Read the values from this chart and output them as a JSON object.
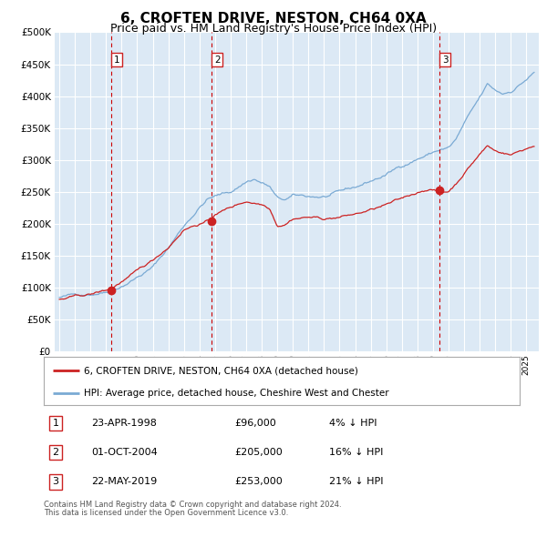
{
  "title": "6, CROFTEN DRIVE, NESTON, CH64 0XA",
  "subtitle": "Price paid vs. HM Land Registry's House Price Index (HPI)",
  "title_fontsize": 11,
  "subtitle_fontsize": 9,
  "ytick_values": [
    0,
    50000,
    100000,
    150000,
    200000,
    250000,
    300000,
    350000,
    400000,
    450000,
    500000
  ],
  "ylim": [
    0,
    500000
  ],
  "xlim_start": 1994.7,
  "xlim_end": 2025.8,
  "background_color": "#ffffff",
  "plot_bg_color": "#dce9f5",
  "grid_color": "#ffffff",
  "hpi_line_color": "#7aaad4",
  "sale_line_color": "#cc2222",
  "sale_point_color": "#cc2222",
  "vline_color": "#cc0000",
  "legend_label_sale": "6, CROFTEN DRIVE, NESTON, CH64 0XA (detached house)",
  "legend_label_hpi": "HPI: Average price, detached house, Cheshire West and Chester",
  "transactions": [
    {
      "num": 1,
      "date_year": 1998.31,
      "price": 96000
    },
    {
      "num": 2,
      "date_year": 2004.75,
      "price": 205000
    },
    {
      "num": 3,
      "date_year": 2019.39,
      "price": 253000
    }
  ],
  "footer_line1": "Contains HM Land Registry data © Crown copyright and database right 2024.",
  "footer_line2": "This data is licensed under the Open Government Licence v3.0.",
  "table_rows": [
    {
      "num": 1,
      "date": "23-APR-1998",
      "price": "£96,000",
      "pct": "4% ↓ HPI"
    },
    {
      "num": 2,
      "date": "01-OCT-2004",
      "price": "£205,000",
      "pct": "16% ↓ HPI"
    },
    {
      "num": 3,
      "date": "22-MAY-2019",
      "price": "£253,000",
      "pct": "21% ↓ HPI"
    }
  ]
}
